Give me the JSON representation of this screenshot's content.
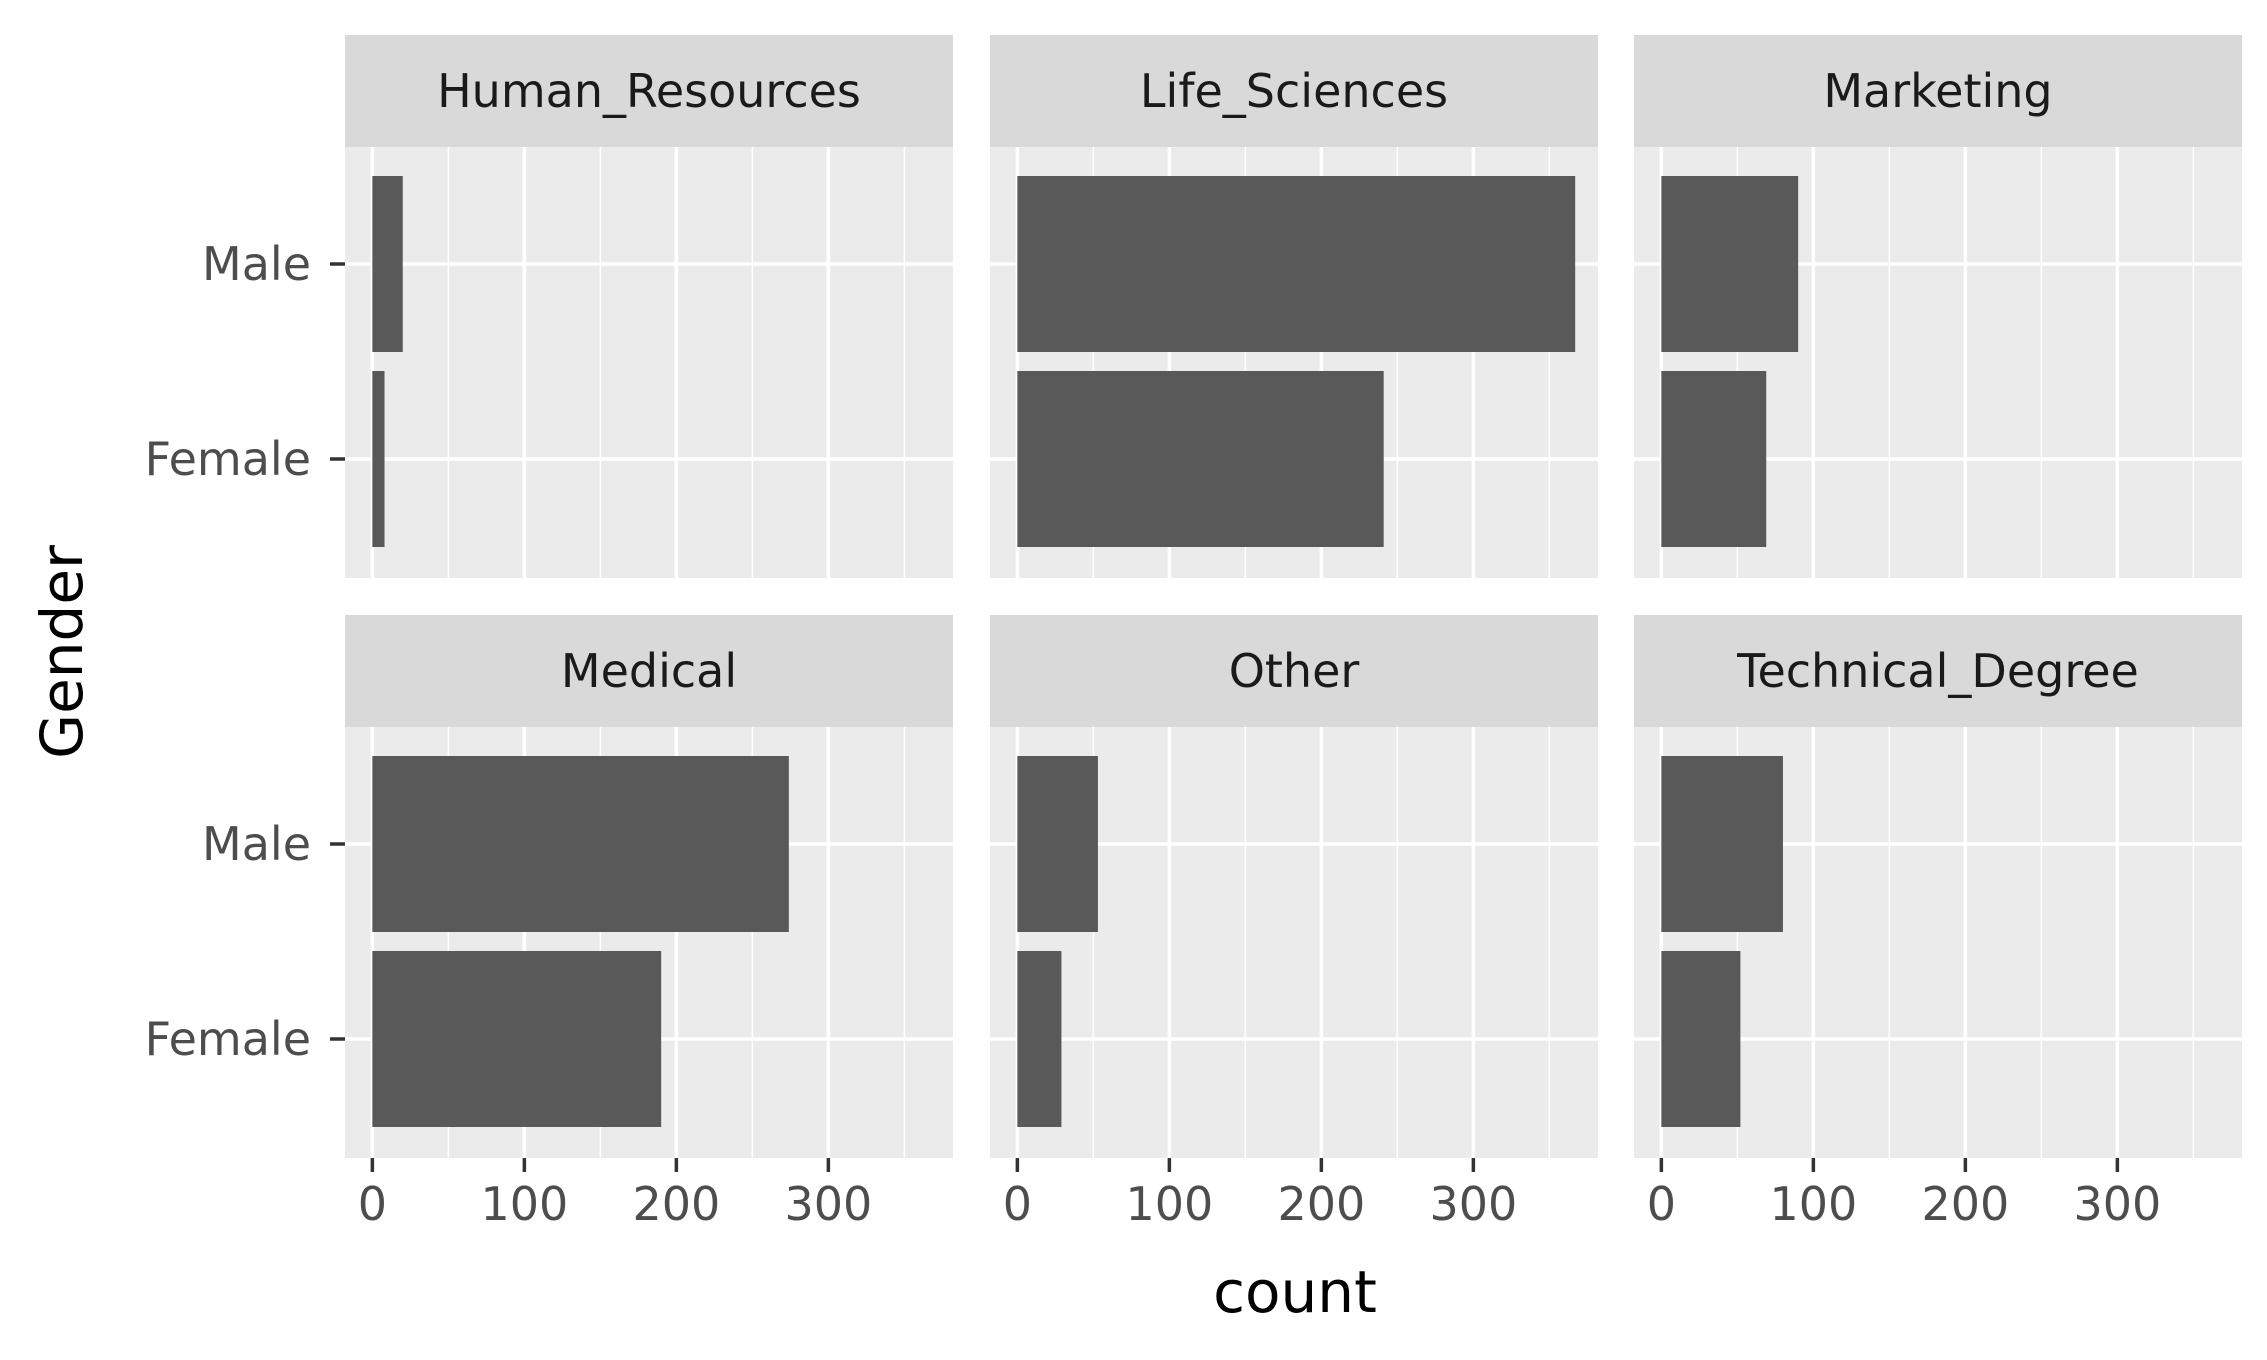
{
  "chart_data": {
    "type": "bar",
    "orientation": "horizontal",
    "facet_by": "EducationField",
    "xlabel": "count",
    "ylabel": "Gender",
    "xlim": [
      -18,
      382
    ],
    "x_ticks": [
      0,
      100,
      200,
      300
    ],
    "x_ticks_labels": [
      "0",
      "100",
      "200",
      "300"
    ],
    "categories": [
      "Male",
      "Female"
    ],
    "grid": true,
    "legend": "none",
    "colors": {
      "bar": "#595959",
      "panel": "#ebebeb",
      "strip": "#d9d9d9",
      "grid": "#ffffff"
    },
    "facets": [
      {
        "title": "Human_Resources",
        "values": [
          20,
          8
        ]
      },
      {
        "title": "Life_Sciences",
        "values": [
          367,
          241
        ]
      },
      {
        "title": "Marketing",
        "values": [
          90,
          69
        ]
      },
      {
        "title": "Medical",
        "values": [
          274,
          190
        ]
      },
      {
        "title": "Other",
        "values": [
          53,
          29
        ]
      },
      {
        "title": "Technical_Degree",
        "values": [
          80,
          52
        ]
      }
    ]
  }
}
